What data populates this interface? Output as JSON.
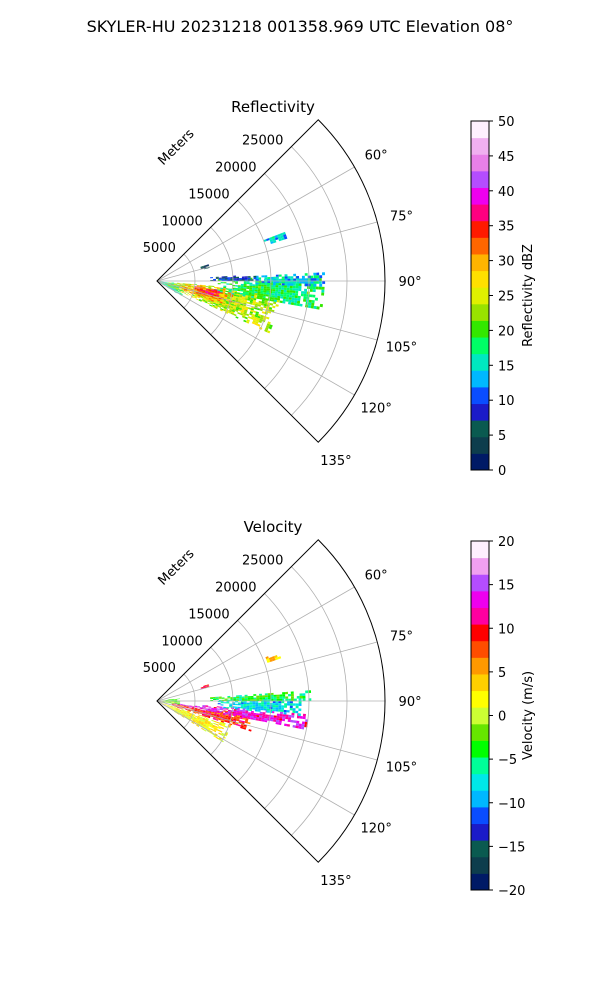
{
  "figure_title": "SKYLER-HU  20231218  001358.969 UTC Elevation 08°",
  "chart_data": [
    {
      "type": "heatmap",
      "projection": "polar-sector",
      "title": "Reflectivity",
      "radial_label": "Meters",
      "radial_ticks": [
        5000,
        10000,
        15000,
        20000,
        25000
      ],
      "radial_tick_labels": [
        "5000",
        "10000",
        "15000",
        "20000",
        "25000"
      ],
      "rmax": 30000,
      "azimuth_range_deg": [
        45,
        135
      ],
      "azimuth_ticks": [
        60,
        75,
        90,
        105,
        120,
        135
      ],
      "azimuth_tick_labels": [
        "60°",
        "75°",
        "90°",
        "105°",
        "120°",
        "135°"
      ],
      "grid": true,
      "colorbar": {
        "label": "Reflectivity dBZ",
        "range": [
          0,
          50
        ],
        "ticks": [
          0,
          5,
          10,
          15,
          20,
          25,
          30,
          35,
          40,
          45,
          50
        ],
        "tick_labels": [
          "0",
          "5",
          "10",
          "15",
          "20",
          "25",
          "30",
          "35",
          "40",
          "45",
          "50"
        ],
        "colors": [
          "#001a66",
          "#0d3d4d",
          "#0a5a50",
          "#1b1bc8",
          "#0a4dff",
          "#00b8ff",
          "#00e8c0",
          "#00ff66",
          "#33e800",
          "#99e200",
          "#e0f000",
          "#ffe000",
          "#ffb400",
          "#ff6600",
          "#ff1a00",
          "#ff0080",
          "#ee00ee",
          "#b44dff",
          "#e880e8",
          "#f0b0f0",
          "#fdf0fd"
        ]
      },
      "echo_regions": [
        {
          "az": [
            96,
            122
          ],
          "range": [
            0,
            3500
          ],
          "value": 16
        },
        {
          "az": [
            95,
            115
          ],
          "range": [
            1500,
            16000
          ],
          "value": 24
        },
        {
          "az": [
            96,
            110
          ],
          "range": [
            3000,
            10000
          ],
          "value": 30
        },
        {
          "az": [
            98,
            106
          ],
          "range": [
            5000,
            8500
          ],
          "value": 35
        },
        {
          "az": [
            88,
            100
          ],
          "range": [
            8000,
            22000
          ],
          "value": 18
        },
        {
          "az": [
            87,
            92
          ],
          "range": [
            13000,
            22000
          ],
          "value": 14
        },
        {
          "az": [
            86,
            90
          ],
          "range": [
            7000,
            13000
          ],
          "value": 8
        },
        {
          "az": [
            68,
            72
          ],
          "range": [
            15000,
            18000
          ],
          "value": 14
        },
        {
          "az": [
            72,
            76
          ],
          "range": [
            6000,
            7000
          ],
          "value": 4
        }
      ]
    },
    {
      "type": "heatmap",
      "projection": "polar-sector",
      "title": "Velocity",
      "radial_label": "Meters",
      "radial_ticks": [
        5000,
        10000,
        15000,
        20000,
        25000
      ],
      "radial_tick_labels": [
        "5000",
        "10000",
        "15000",
        "20000",
        "25000"
      ],
      "rmax": 30000,
      "azimuth_range_deg": [
        45,
        135
      ],
      "azimuth_ticks": [
        60,
        75,
        90,
        105,
        120,
        135
      ],
      "azimuth_tick_labels": [
        "60°",
        "75°",
        "90°",
        "105°",
        "120°",
        "135°"
      ],
      "grid": true,
      "colorbar": {
        "label": "Velocity (m/s)",
        "range": [
          -20,
          20
        ],
        "ticks": [
          -20,
          -15,
          -10,
          -5,
          0,
          5,
          10,
          15,
          20
        ],
        "tick_labels": [
          "−20",
          "−15",
          "−10",
          "−5",
          "0",
          "5",
          "10",
          "15",
          "20"
        ],
        "colors": [
          "#001a66",
          "#0d3d4d",
          "#0a5a50",
          "#1b1bc8",
          "#0a4dff",
          "#00b8ff",
          "#00e8e8",
          "#00ff99",
          "#00ff00",
          "#66e600",
          "#ccff33",
          "#ffff00",
          "#ffd000",
          "#ff9900",
          "#ff4d00",
          "#ff0000",
          "#ff00a0",
          "#ee00ee",
          "#b44dff",
          "#f0a0f0",
          "#fdf0fd"
        ]
      },
      "echo_regions": [
        {
          "az": [
            108,
            122
          ],
          "range": [
            0,
            10000
          ],
          "value": 2
        },
        {
          "az": [
            98,
            108
          ],
          "range": [
            2000,
            13000
          ],
          "value": 9
        },
        {
          "az": [
            95,
            101
          ],
          "range": [
            6000,
            20000
          ],
          "value": 13
        },
        {
          "az": [
            89,
            96
          ],
          "range": [
            8000,
            19000
          ],
          "value": -8
        },
        {
          "az": [
            86,
            90
          ],
          "range": [
            7000,
            20000
          ],
          "value": -4
        },
        {
          "az": [
            97,
            100
          ],
          "range": [
            0,
            9000
          ],
          "value": 15
        },
        {
          "az": [
            82,
            100
          ],
          "range": [
            0,
            3000
          ],
          "value": -2
        },
        {
          "az": [
            68,
            71
          ],
          "range": [
            15000,
            17000
          ],
          "value": 4
        },
        {
          "az": [
            72,
            75
          ],
          "range": [
            6000,
            7000
          ],
          "value": 10
        }
      ]
    }
  ]
}
